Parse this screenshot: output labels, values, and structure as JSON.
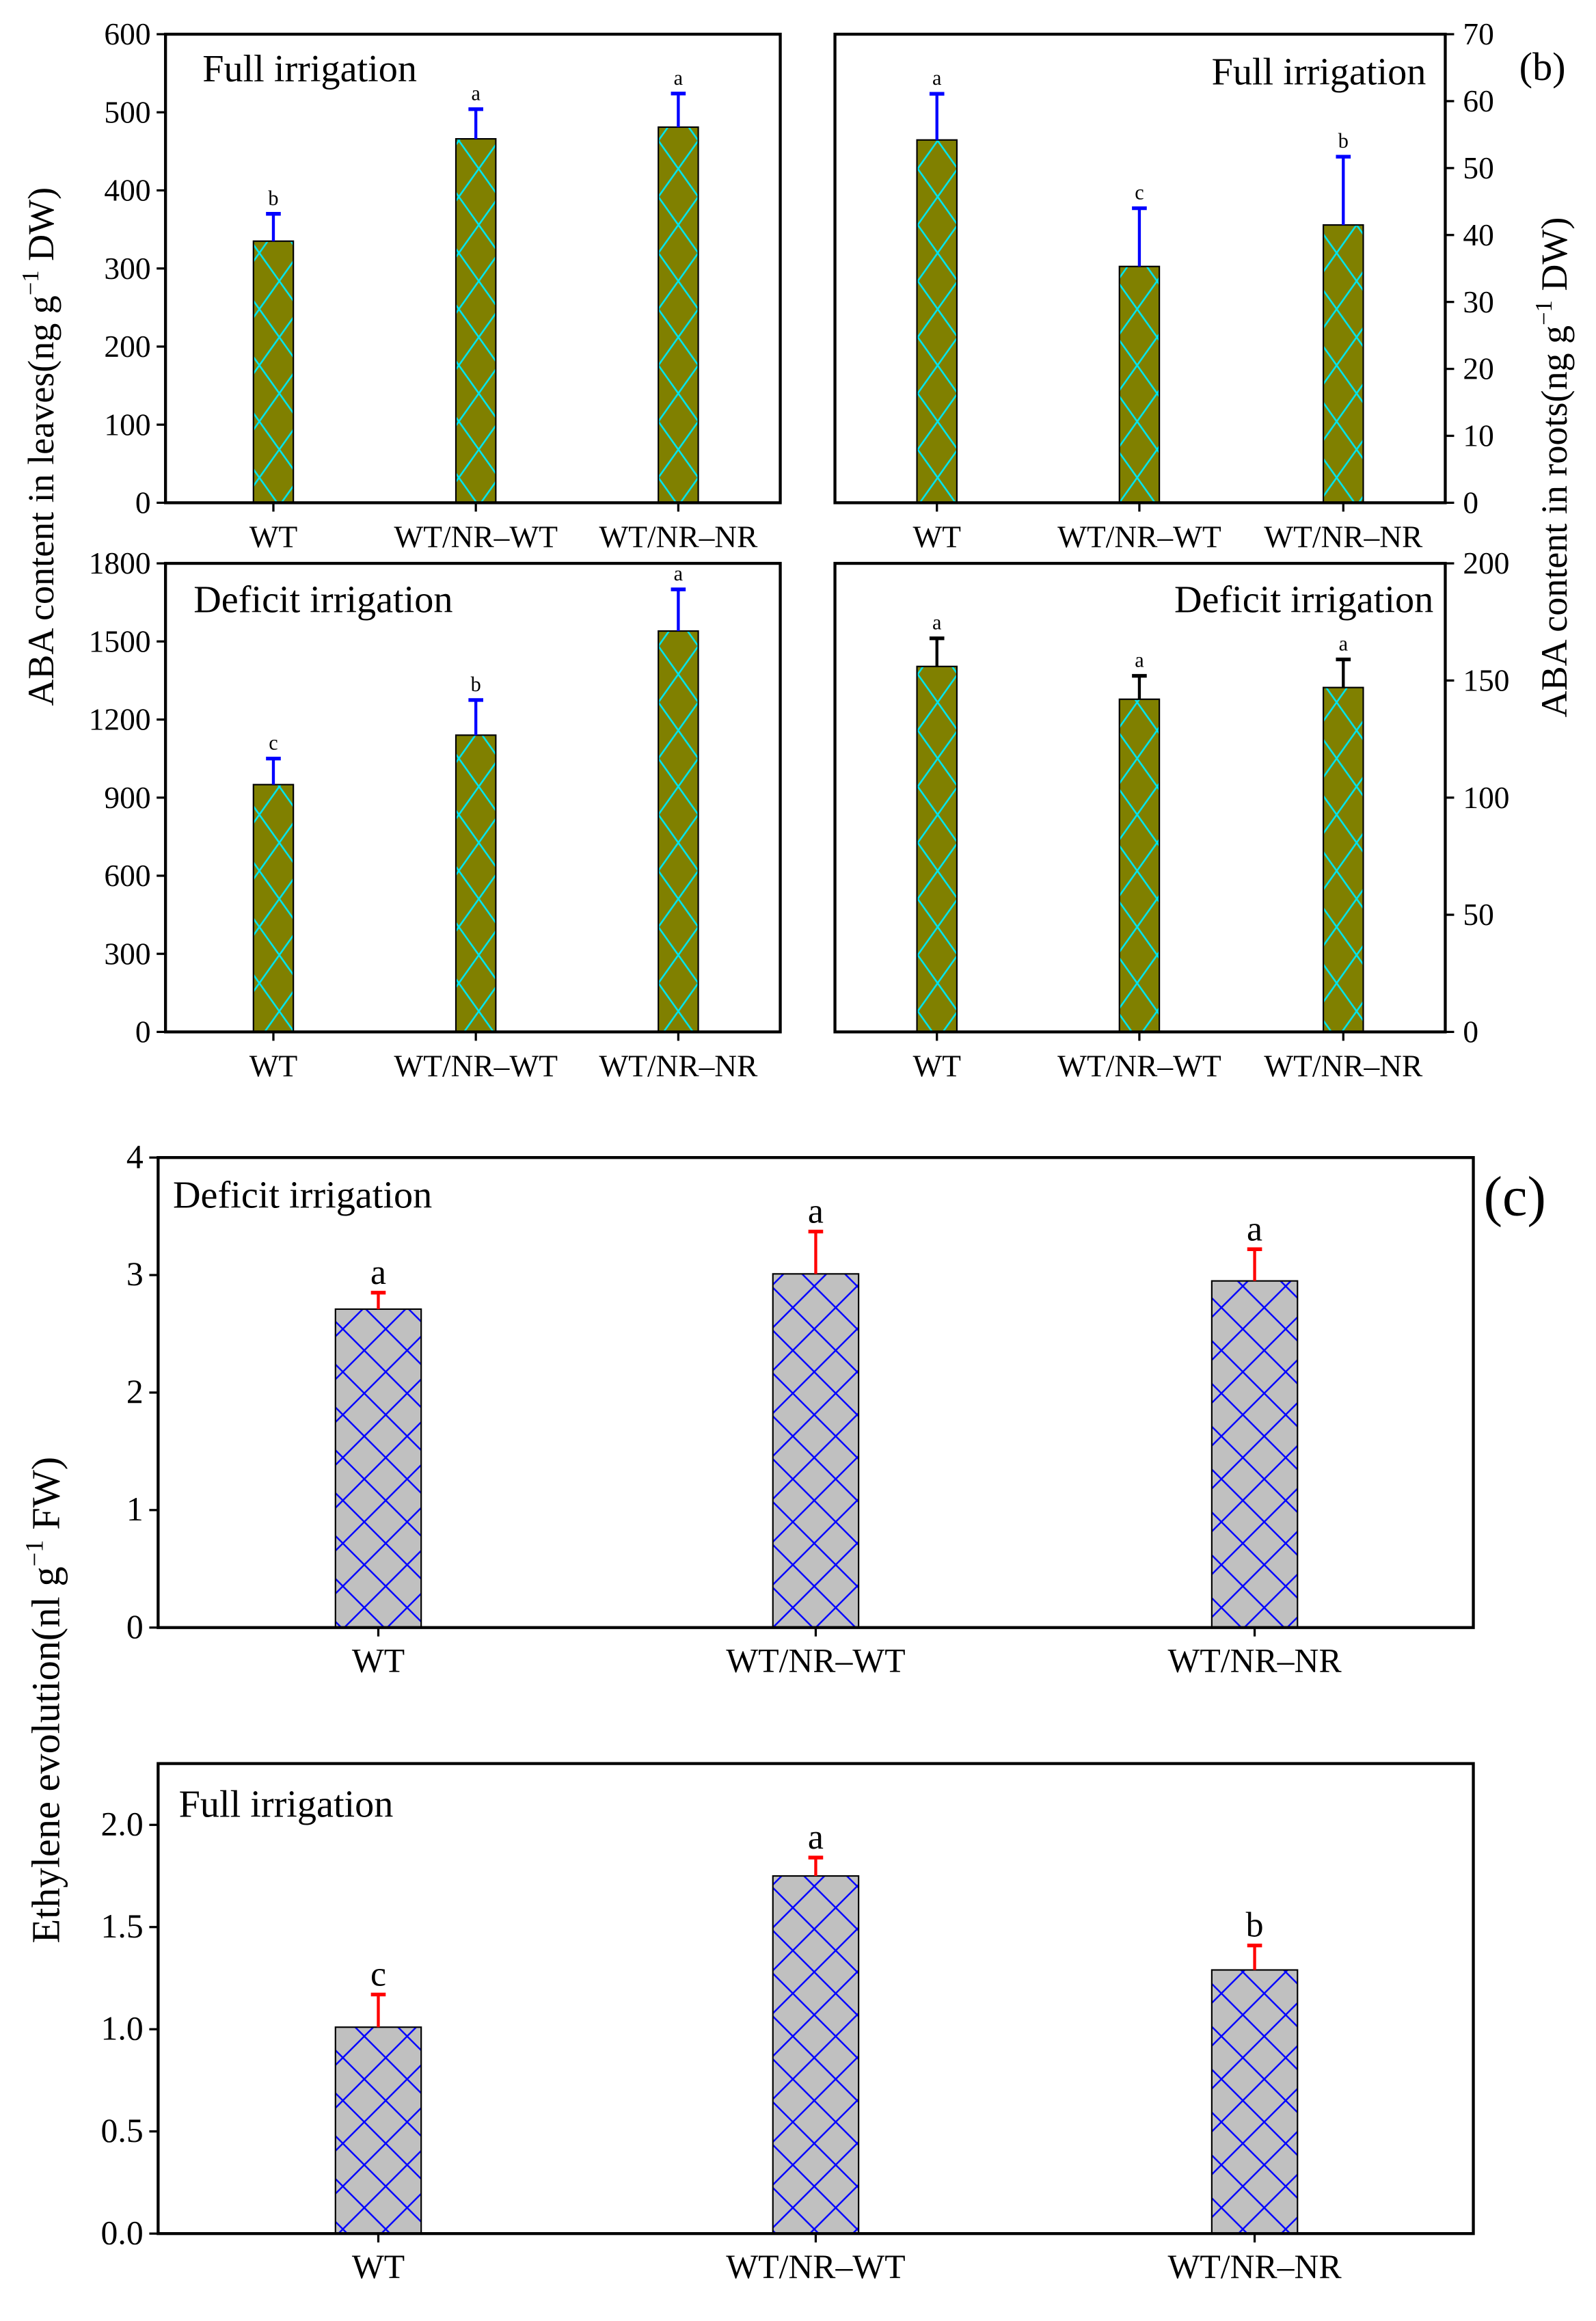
{
  "figure": {
    "panel_b_label": "(b)",
    "panel_c_label": "(c)",
    "aba_leaves_ylabel": "ABA content in leaves(ng g",
    "aba_roots_ylabel": "ABA content in roots(ng g",
    "aba_unit_sup": "−1",
    "aba_unit_tail": " DW)",
    "ethylene_ylabel": "Ethylene evolution(nl g",
    "ethylene_unit_sup": "−1",
    "ethylene_unit_tail": " FW)"
  },
  "colors": {
    "aba_bar_fill": "#808000",
    "aba_hatch": "#00e5ee",
    "eth_bar_fill": "#c0c0c0",
    "eth_hatch": "#0000ff"
  },
  "chart_data": [
    {
      "type": "bar",
      "title": "Full irrigation",
      "tissue": "leaves",
      "categories": [
        "WT",
        "WT/NR–WT",
        "WT/NR–NR"
      ],
      "values": [
        335,
        466,
        481
      ],
      "errors": [
        35,
        38,
        43
      ],
      "letters": [
        "b",
        "a",
        "a"
      ],
      "ylim": [
        0,
        600
      ],
      "yticks": [
        0,
        100,
        200,
        300,
        400,
        500,
        600
      ],
      "ylabel": "ABA content in leaves (ng g−1 DW)",
      "error_color": "#0000ff",
      "title_align": "left",
      "axis_side": "left"
    },
    {
      "type": "bar",
      "title": "Full irrigation",
      "tissue": "roots",
      "categories": [
        "WT",
        "WT/NR–WT",
        "WT/NR–NR"
      ],
      "values": [
        54.2,
        35.3,
        41.5
      ],
      "errors": [
        6.9,
        8.7,
        10.2
      ],
      "letters": [
        "a",
        "c",
        "b"
      ],
      "ylim": [
        0,
        70
      ],
      "yticks": [
        0,
        10,
        20,
        30,
        40,
        50,
        60,
        70
      ],
      "ylabel": "ABA content in roots (ng g−1 DW)",
      "error_color": "#0000ff",
      "title_align": "right",
      "axis_side": "right"
    },
    {
      "type": "bar",
      "title": "Deficit irrigation",
      "tissue": "leaves",
      "categories": [
        "WT",
        "WT/NR–WT",
        "WT/NR–NR"
      ],
      "values": [
        950,
        1140,
        1540
      ],
      "errors": [
        100,
        135,
        160
      ],
      "letters": [
        "c",
        "b",
        "a"
      ],
      "ylim": [
        0,
        1800
      ],
      "yticks": [
        0,
        300,
        600,
        900,
        1200,
        1500,
        1800
      ],
      "ylabel": "ABA content in leaves (ng g−1 DW)",
      "error_color": "#0000ff",
      "title_align": "left",
      "axis_side": "left"
    },
    {
      "type": "bar",
      "title": "Deficit irrigation",
      "tissue": "roots",
      "categories": [
        "WT",
        "WT/NR–WT",
        "WT/NR–NR"
      ],
      "values": [
        156,
        142,
        147
      ],
      "errors": [
        12,
        10,
        12
      ],
      "letters": [
        "a",
        "a",
        "a"
      ],
      "ylim": [
        0,
        200
      ],
      "yticks": [
        0,
        50,
        100,
        150,
        200
      ],
      "ylabel": "ABA content in roots (ng g−1 DW)",
      "error_color": "#000000",
      "title_align": "right",
      "axis_side": "right"
    },
    {
      "type": "bar",
      "title": "Deficit irrigation",
      "tissue": "ethylene",
      "categories": [
        "WT",
        "WT/NR–WT",
        "WT/NR–NR"
      ],
      "values": [
        2.71,
        3.01,
        2.95
      ],
      "errors": [
        0.14,
        0.36,
        0.27
      ],
      "letters": [
        "a",
        "a",
        "a"
      ],
      "ylim": [
        0,
        4
      ],
      "yticks": [
        0,
        1,
        2,
        3,
        4
      ],
      "ytick_labels": [
        "0",
        "1",
        "2",
        "3",
        "4"
      ],
      "ylabel": "Ethylene evolution (nl g−1 FW)",
      "error_color": "#ff0000",
      "title_align": "left",
      "axis_side": "left"
    },
    {
      "type": "bar",
      "title": "Full irrigation",
      "tissue": "ethylene",
      "categories": [
        "WT",
        "WT/NR–WT",
        "WT/NR–NR"
      ],
      "values": [
        1.01,
        1.75,
        1.29
      ],
      "errors": [
        0.16,
        0.09,
        0.12
      ],
      "letters": [
        "c",
        "a",
        "b"
      ],
      "ylim": [
        0,
        2.3
      ],
      "yticks": [
        0,
        0.5,
        1.0,
        1.5,
        2.0
      ],
      "ytick_labels": [
        "0.0",
        "0.5",
        "1.0",
        "1.5",
        "2.0"
      ],
      "ylabel": "Ethylene evolution (nl g−1 FW)",
      "error_color": "#ff0000",
      "title_align": "left",
      "axis_side": "left"
    }
  ]
}
